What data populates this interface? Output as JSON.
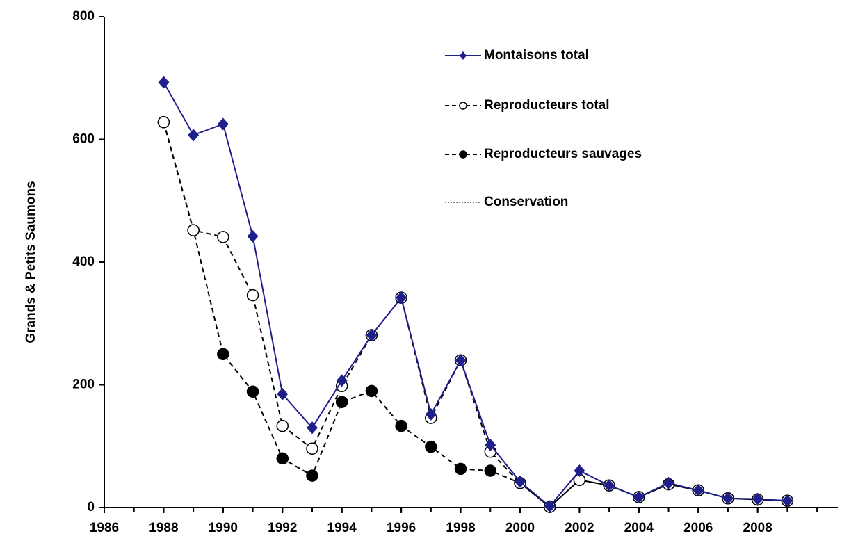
{
  "chart_data": {
    "type": "line",
    "y_label": "Grands & Petits Saumons",
    "x": [
      1988,
      1989,
      1990,
      1991,
      1992,
      1993,
      1994,
      1995,
      1996,
      1997,
      1998,
      1999,
      2000,
      2001,
      2002,
      2003,
      2004,
      2005,
      2006,
      2007,
      2008,
      2009
    ],
    "series": [
      {
        "name": "Montaisons total",
        "color": "#1f1f8c",
        "style": "solid",
        "marker": "diamond",
        "values": [
          693,
          607,
          625,
          442,
          185,
          130,
          207,
          281,
          342,
          152,
          240,
          102,
          42,
          2,
          60,
          36,
          17,
          40,
          28,
          15,
          14,
          11
        ]
      },
      {
        "name": "Reproducteurs total",
        "color": "#000000",
        "style": "dashed",
        "marker": "open-circle",
        "values": [
          628,
          452,
          441,
          346,
          133,
          96,
          198,
          281,
          342,
          146,
          240,
          91,
          40,
          1,
          45,
          36,
          17,
          38,
          28,
          15,
          13,
          11
        ]
      },
      {
        "name": "Reproducteurs sauvages",
        "color": "#000000",
        "style": "dashed",
        "marker": "filled-circle",
        "values": [
          628,
          452,
          250,
          189,
          80,
          52,
          172,
          190,
          133,
          99,
          63,
          60,
          40,
          1,
          45,
          36,
          17,
          38,
          28,
          15,
          13,
          11
        ]
      }
    ],
    "conservation": {
      "name": "Conservation",
      "value": 234,
      "x": [
        1987,
        2008
      ]
    },
    "xlim": [
      1986,
      2010.7
    ],
    "xticks": [
      1986,
      1988,
      1990,
      1992,
      1994,
      1996,
      1998,
      2000,
      2002,
      2004,
      2006,
      2008
    ],
    "ylim": [
      0,
      800
    ],
    "yticks": [
      0,
      200,
      400,
      600,
      800
    ]
  }
}
